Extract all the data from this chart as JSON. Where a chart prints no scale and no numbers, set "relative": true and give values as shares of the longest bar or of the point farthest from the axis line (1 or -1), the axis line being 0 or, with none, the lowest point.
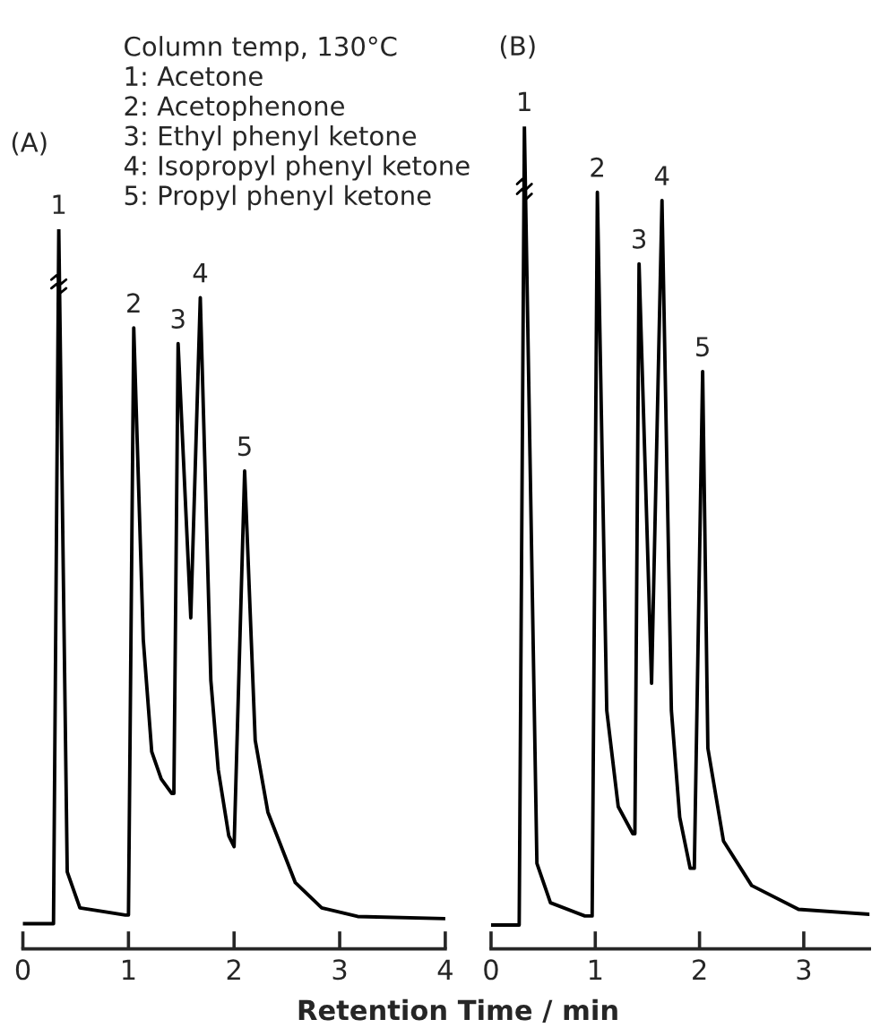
{
  "chart_data": [
    {
      "type": "line",
      "title": "(A)",
      "xlabel": "Retention Time / min",
      "relative": true,
      "xlim": [
        0,
        4
      ],
      "xticks": [
        0,
        1,
        2,
        3,
        4
      ],
      "grid": false,
      "legend": false,
      "marker": "none",
      "line_style": "solid",
      "annotations": [
        "Column temp, 130°C",
        "1: Acetone",
        "2: Acetophenone",
        "3: Ethyl phenyl ketone",
        "4: Isopropyl phenyl ketone",
        "5: Propyl phenyl ketone",
        {
          "text": "1",
          "x": 0.34,
          "y": 1.0
        },
        {
          "text": "2",
          "x": 1.05,
          "y": 0.863
        },
        {
          "text": "3",
          "x": 1.47,
          "y": 0.841
        },
        {
          "text": "4",
          "x": 1.68,
          "y": 0.905
        },
        {
          "text": "5",
          "x": 2.1,
          "y": 0.664
        }
      ],
      "series": [
        {
          "color": "#000000",
          "x": [
            0,
            0.29,
            0.34,
            0.42,
            0.54,
            0.97,
            1.0,
            1.05,
            1.14,
            1.22,
            1.31,
            1.41,
            1.43,
            1.47,
            1.59,
            1.68,
            1.78,
            1.85,
            1.95,
            2.0,
            2.1,
            2.2,
            2.32,
            2.58,
            2.83,
            3.17,
            4.0
          ],
          "values": [
            0.035,
            0.035,
            1.0,
            0.107,
            0.057,
            0.047,
            0.047,
            0.863,
            0.43,
            0.274,
            0.236,
            0.216,
            0.216,
            0.841,
            0.46,
            0.905,
            0.373,
            0.249,
            0.157,
            0.142,
            0.664,
            0.29,
            0.19,
            0.092,
            0.057,
            0.045,
            0.042
          ]
        }
      ]
    },
    {
      "type": "line",
      "title": "(B)",
      "relative": true,
      "xlim": [
        0,
        3.63
      ],
      "xticks": [
        0,
        1,
        2,
        3
      ],
      "grid": false,
      "legend": false,
      "marker": "none",
      "line_style": "solid",
      "annotations": [
        {
          "text": "1",
          "x": 0.32,
          "y": 1.0
        },
        {
          "text": "2",
          "x": 1.02,
          "y": 0.92
        },
        {
          "text": "3",
          "x": 1.42,
          "y": 0.833
        },
        {
          "text": "4",
          "x": 1.64,
          "y": 0.91
        },
        {
          "text": "5",
          "x": 2.03,
          "y": 0.702
        }
      ],
      "series": [
        {
          "color": "#000000",
          "x": [
            0,
            0.27,
            0.32,
            0.44,
            0.57,
            0.9,
            0.97,
            1.02,
            1.11,
            1.22,
            1.36,
            1.38,
            1.42,
            1.54,
            1.64,
            1.73,
            1.81,
            1.91,
            1.95,
            2.03,
            2.08,
            2.23,
            2.5,
            2.95,
            3.63
          ],
          "values": [
            0.029,
            0.029,
            1.0,
            0.104,
            0.056,
            0.04,
            0.04,
            0.92,
            0.29,
            0.173,
            0.14,
            0.14,
            0.833,
            0.323,
            0.91,
            0.29,
            0.16,
            0.098,
            0.098,
            0.702,
            0.244,
            0.131,
            0.077,
            0.048,
            0.042
          ]
        }
      ]
    }
  ]
}
